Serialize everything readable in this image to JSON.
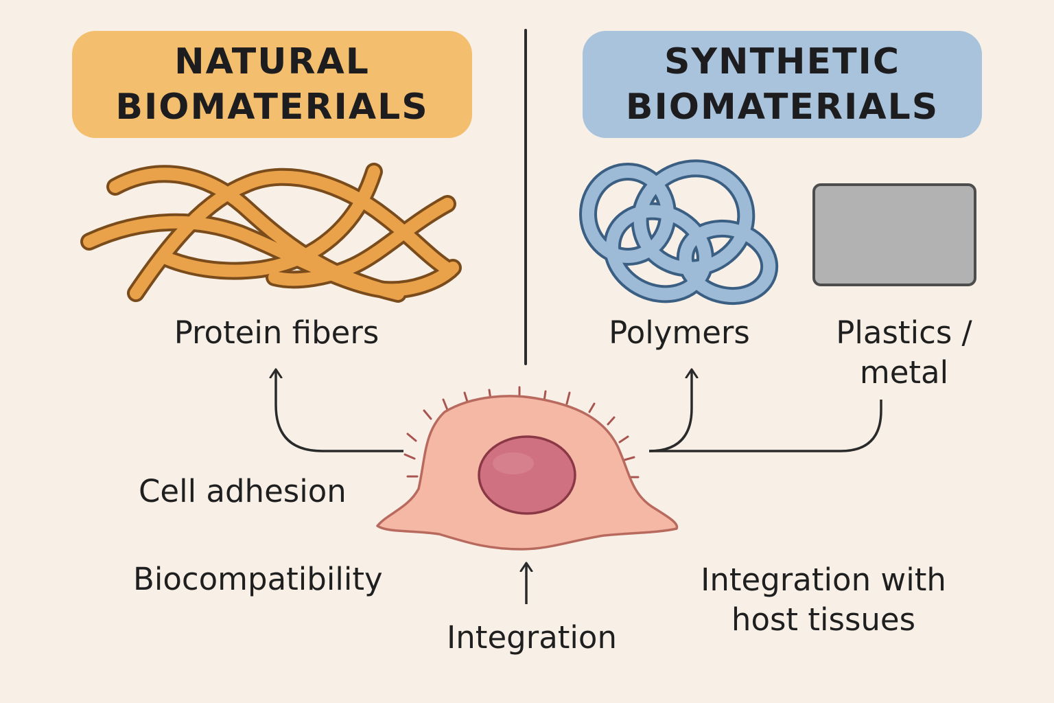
{
  "natural": {
    "title_line1": "NATURAL",
    "title_line2": "BIOMATERIALS",
    "color": "#f3bf6f",
    "item": "Protein fibers"
  },
  "synthetic": {
    "title_line1": "SYNTHETIC",
    "title_line2": "BIOMATERIALS",
    "color": "#a8c3db",
    "items": [
      "Polymers",
      "Plastics /",
      "metal"
    ]
  },
  "properties": {
    "cell_adhesion": "Cell adhesion",
    "biocompatibility": "Biocompatibility",
    "integration": "Integration",
    "integration_host_line1": "Integration with",
    "integration_host_line2": "host tissues"
  },
  "icons": {
    "fibers": "protein-fibers-icon",
    "polymer": "polymer-coil-icon",
    "plate": "plastic-metal-plate-icon",
    "cell": "cell-icon"
  },
  "colors": {
    "background": "#f8f0e7",
    "fiber": "#e9a24b",
    "polymer": "#9dbad7",
    "plate": "#b2b2b2",
    "cell": "#f4b8a5",
    "nucleus": "#cf7180"
  }
}
